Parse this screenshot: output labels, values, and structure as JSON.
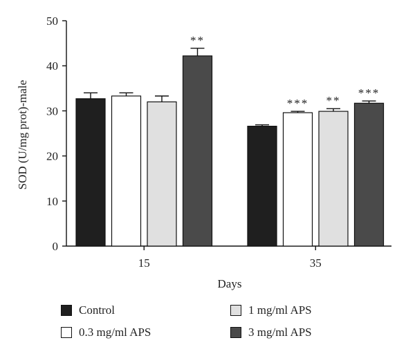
{
  "chart_data": {
    "type": "bar",
    "categories": [
      "15",
      "35"
    ],
    "series": [
      {
        "name": "Control",
        "values": [
          32.7,
          26.6
        ],
        "errors": [
          1.3,
          0.3
        ],
        "annotations": [
          "",
          ""
        ],
        "color": "#1f1f1f"
      },
      {
        "name": "0.3 mg/ml APS",
        "values": [
          33.3,
          29.6
        ],
        "errors": [
          0.7,
          0.3
        ],
        "annotations": [
          "",
          "***"
        ],
        "color": "#ffffff"
      },
      {
        "name": "1 mg/ml APS",
        "values": [
          32.0,
          29.9
        ],
        "errors": [
          1.3,
          0.6
        ],
        "annotations": [
          "",
          "**"
        ],
        "color": "#e0e0e0"
      },
      {
        "name": "3 mg/ml APS",
        "values": [
          42.2,
          31.7
        ],
        "errors": [
          1.7,
          0.5
        ],
        "annotations": [
          "**",
          "***"
        ],
        "color": "#4a4a4a"
      }
    ],
    "xlabel": "Days",
    "ylabel": "SOD (U/mg prot)-male",
    "ylim": [
      0,
      50
    ],
    "yticks": [
      0,
      10,
      20,
      30,
      40,
      50
    ],
    "grid": false,
    "legend_position": "bottom"
  }
}
